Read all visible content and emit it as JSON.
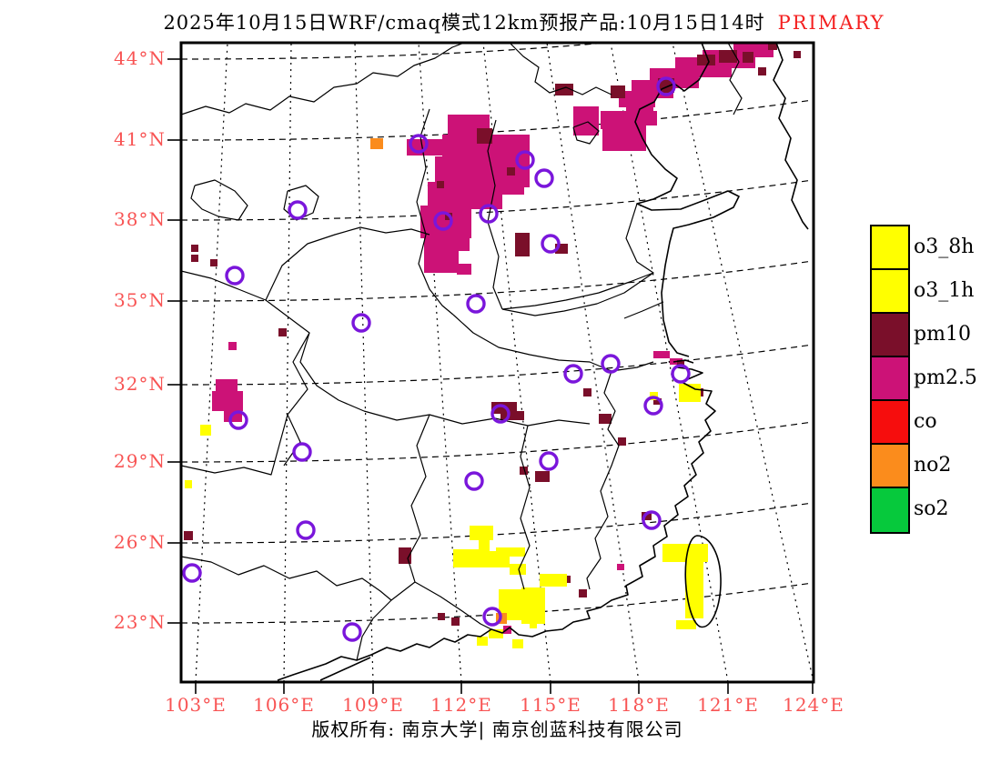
{
  "title": {
    "main": "2025年10月15日WRF/cmaq模式12km预报产品:10月15日14时",
    "tag": "PRIMARY"
  },
  "axes": {
    "lat_labels": [
      "44°N",
      "41°N",
      "38°N",
      "35°N",
      "32°N",
      "29°N",
      "26°N",
      "23°N"
    ],
    "lon_labels": [
      "103°E",
      "106°E",
      "109°E",
      "112°E",
      "115°E",
      "118°E",
      "121°E",
      "124°E"
    ]
  },
  "legend": {
    "items": [
      {
        "key": "o3_8h",
        "label": "o3_8h",
        "color": "#ffff00"
      },
      {
        "key": "o3_1h",
        "label": "o3_1h",
        "color": "#ffff00"
      },
      {
        "key": "pm10",
        "label": "pm10",
        "color": "#7a0f2a"
      },
      {
        "key": "pm25",
        "label": "pm2.5",
        "color": "#cc1277"
      },
      {
        "key": "co",
        "label": "co",
        "color": "#f60d0d"
      },
      {
        "key": "no2",
        "label": "no2",
        "color": "#fb8c1c"
      },
      {
        "key": "so2",
        "label": "so2",
        "color": "#06c93c"
      }
    ]
  },
  "footer": {
    "copyright": "版权所有: 南京大学| 南京创蓝科技有限公司"
  },
  "colors": {
    "o3": "#ffff00",
    "pm10": "#7a0f2a",
    "pm25": "#cc1277",
    "no2": "#fb8c1c",
    "station": "#7a16db",
    "axis_red": "#f85454",
    "title_red": "#f42020"
  },
  "map": {
    "patches": {
      "pm25": [
        [
          806,
          47,
          44,
          16
        ],
        [
          772,
          55,
          58,
          20
        ],
        [
          742,
          63,
          62,
          22
        ],
        [
          714,
          75,
          54,
          22
        ],
        [
          694,
          88,
          46,
          20
        ],
        [
          680,
          100,
          40,
          18
        ],
        [
          688,
          112,
          30,
          16
        ],
        [
          660,
          122,
          44,
          20
        ],
        [
          630,
          117,
          28,
          32
        ],
        [
          662,
          138,
          48,
          28
        ],
        [
          700,
          122,
          22,
          16
        ],
        [
          447,
          153,
          62,
          18
        ],
        [
          492,
          126,
          46,
          30
        ],
        [
          486,
          148,
          96,
          30
        ],
        [
          478,
          172,
          104,
          34
        ],
        [
          470,
          200,
          82,
          30
        ],
        [
          462,
          226,
          56,
          36
        ],
        [
          466,
          258,
          38,
          42
        ],
        [
          490,
          252,
          26,
          24
        ],
        [
          546,
          196,
          30,
          18
        ],
        [
          502,
          290,
          16,
          12
        ],
        [
          237,
          417,
          24,
          16
        ],
        [
          233,
          430,
          34,
          22
        ],
        [
          246,
          450,
          20,
          14
        ],
        [
          718,
          386,
          18,
          8
        ],
        [
          736,
          394,
          14,
          7
        ],
        [
          678,
          620,
          8,
          7
        ],
        [
          553,
          688,
          9,
          9
        ],
        [
          251,
          376,
          9,
          9
        ]
      ],
      "pm10": [
        [
          766,
          60,
          20,
          12
        ],
        [
          790,
          55,
          20,
          14
        ],
        [
          816,
          57,
          12,
          12
        ],
        [
          833,
          74,
          9,
          9
        ],
        [
          844,
          47,
          10,
          8
        ],
        [
          872,
          56,
          8,
          8
        ],
        [
          723,
          86,
          18,
          16
        ],
        [
          610,
          92,
          20,
          13
        ],
        [
          671,
          94,
          16,
          14
        ],
        [
          524,
          141,
          17,
          17
        ],
        [
          557,
          184,
          9,
          9
        ],
        [
          480,
          199,
          8,
          8
        ],
        [
          489,
          234,
          8,
          8
        ],
        [
          566,
          256,
          16,
          26
        ],
        [
          610,
          268,
          14,
          11
        ],
        [
          306,
          361,
          9,
          9
        ],
        [
          210,
          269,
          8,
          8
        ],
        [
          210,
          280,
          8,
          8
        ],
        [
          231,
          285,
          8,
          8
        ],
        [
          202,
          584,
          10,
          10
        ],
        [
          540,
          442,
          28,
          13
        ],
        [
          550,
          452,
          26,
          10
        ],
        [
          641,
          427,
          9,
          9
        ],
        [
          658,
          455,
          14,
          11
        ],
        [
          679,
          481,
          9,
          9
        ],
        [
          718,
          438,
          9,
          7
        ],
        [
          764,
          427,
          9,
          9
        ],
        [
          744,
          396,
          8,
          7
        ],
        [
          571,
          513,
          9,
          9
        ],
        [
          588,
          518,
          16,
          12
        ],
        [
          705,
          563,
          11,
          9
        ],
        [
          438,
          602,
          14,
          18
        ],
        [
          481,
          674,
          8,
          8
        ],
        [
          496,
          679,
          9,
          9
        ],
        [
          619,
          633,
          8,
          8
        ],
        [
          636,
          648,
          9,
          9
        ]
      ],
      "o3": [
        [
          516,
          578,
          26,
          16
        ],
        [
          526,
          580,
          12,
          42
        ],
        [
          498,
          604,
          34,
          20
        ],
        [
          500,
          606,
          60,
          18
        ],
        [
          545,
          602,
          32,
          10
        ],
        [
          560,
          620,
          18,
          12
        ],
        [
          593,
          631,
          30,
          14
        ],
        [
          582,
          685,
          8,
          6
        ],
        [
          548,
          648,
          48,
          34
        ],
        [
          573,
          646,
          26,
          40
        ],
        [
          537,
          692,
          16,
          10
        ],
        [
          563,
          703,
          12,
          10
        ],
        [
          524,
          700,
          12,
          10
        ],
        [
          728,
          598,
          50,
          20
        ],
        [
          753,
          616,
          20,
          64
        ],
        [
          743,
          682,
          22,
          10
        ],
        [
          746,
          422,
          24,
          20
        ],
        [
          714,
          431,
          9,
          9
        ],
        [
          220,
          467,
          12,
          12
        ],
        [
          203,
          528,
          8,
          9
        ]
      ],
      "no2": [
        [
          407,
          152,
          14,
          12
        ],
        [
          545,
          674,
          12,
          12
        ]
      ]
    },
    "stations": [
      [
        460,
        158
      ],
      [
        732,
        95
      ],
      [
        577,
        176
      ],
      [
        598,
        196
      ],
      [
        537,
        235
      ],
      [
        487,
        243
      ],
      [
        605,
        268
      ],
      [
        327,
        231
      ],
      [
        258,
        303
      ],
      [
        397,
        355
      ],
      [
        523,
        334
      ],
      [
        262,
        462
      ],
      [
        332,
        497
      ],
      [
        550,
        455
      ],
      [
        630,
        411
      ],
      [
        671,
        400
      ],
      [
        748,
        411
      ],
      [
        718,
        446
      ],
      [
        603,
        507
      ],
      [
        521,
        529
      ],
      [
        211,
        630
      ],
      [
        336,
        583
      ],
      [
        387,
        695
      ],
      [
        541,
        678
      ],
      [
        716,
        572
      ]
    ]
  }
}
